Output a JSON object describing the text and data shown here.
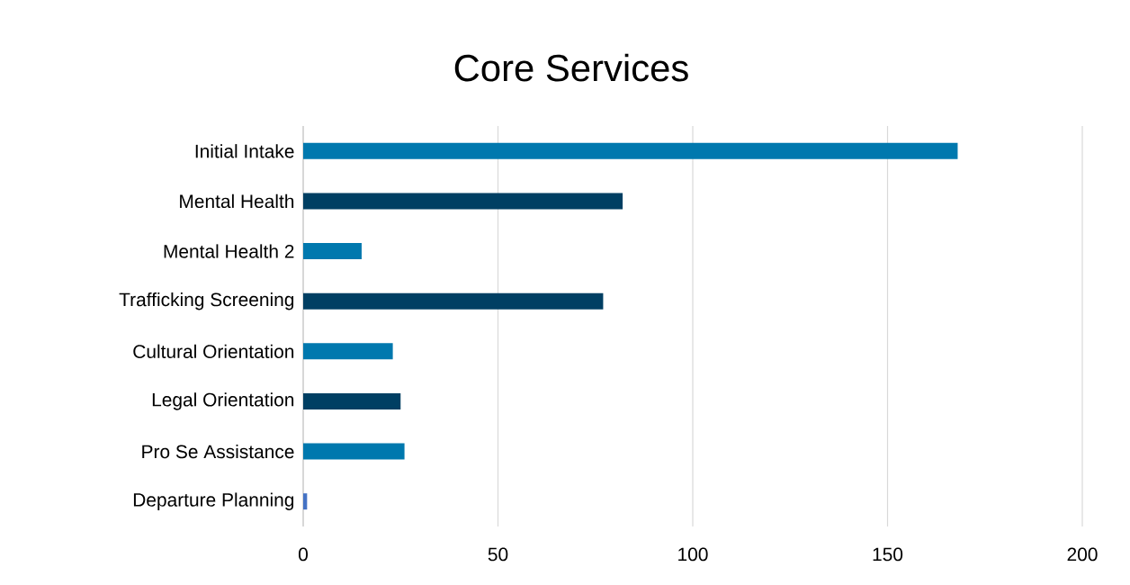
{
  "chart_data": {
    "type": "bar",
    "orientation": "horizontal",
    "title": "Core Services",
    "categories": [
      "Initial Intake",
      "Mental Health",
      "Mental Health 2",
      "Trafficking Screening",
      "Cultural Orientation",
      "Legal Orientation",
      "Pro Se Assistance",
      "Departure Planning"
    ],
    "values": [
      168,
      82,
      15,
      77,
      23,
      25,
      26,
      1
    ],
    "colors": [
      "#0078ae",
      "#003f63",
      "#0078ae",
      "#003f63",
      "#0078ae",
      "#003f63",
      "#0078ae",
      "#4472c4"
    ],
    "xlim": [
      0,
      200
    ],
    "xticks": [
      0,
      50,
      100,
      150,
      200
    ],
    "grid": "x"
  }
}
